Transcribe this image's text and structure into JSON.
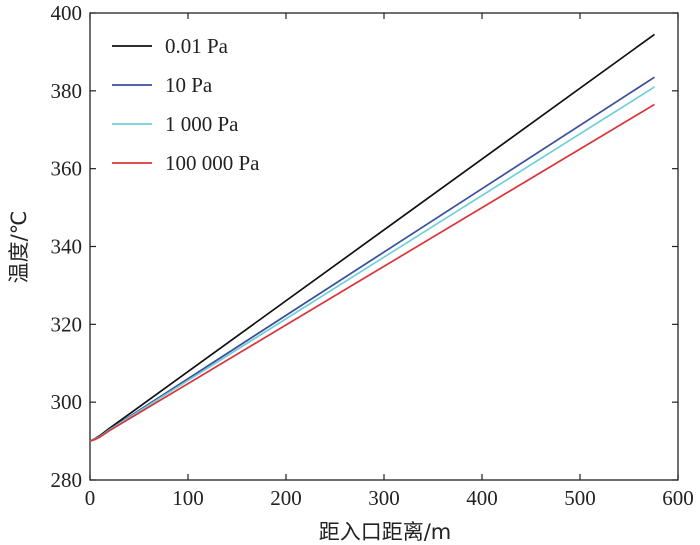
{
  "chart_data": {
    "type": "line",
    "xlabel": "距入口距离/m",
    "ylabel": "温度/℃",
    "xlim": [
      0,
      600
    ],
    "ylim": [
      280,
      400
    ],
    "xticks": [
      "0",
      "100",
      "200",
      "300",
      "400",
      "500",
      "600"
    ],
    "yticks": [
      "280",
      "300",
      "320",
      "340",
      "360",
      "380",
      "400"
    ],
    "xtick_values": [
      0,
      100,
      200,
      300,
      400,
      500,
      600
    ],
    "ytick_values": [
      280,
      300,
      320,
      340,
      360,
      380,
      400
    ],
    "grid": false,
    "legend_position": "top-left",
    "series": [
      {
        "name": "0.01 Pa",
        "color": "#111111",
        "x": [
          0,
          5,
          10,
          20,
          576
        ],
        "y": [
          290,
          290.6,
          291.4,
          293.3,
          394.5
        ]
      },
      {
        "name": "10 Pa",
        "color": "#3a4f9a",
        "x": [
          0,
          5,
          10,
          20,
          576
        ],
        "y": [
          290,
          290.5,
          291.2,
          293.0,
          383.5
        ]
      },
      {
        "name": "1 000 Pa",
        "color": "#6fd0d6",
        "x": [
          0,
          5,
          10,
          20,
          576
        ],
        "y": [
          290,
          290.5,
          291.1,
          292.9,
          381.0
        ]
      },
      {
        "name": "100 000 Pa",
        "color": "#d9343a",
        "x": [
          0,
          5,
          10,
          20,
          576
        ],
        "y": [
          290,
          290.4,
          291.0,
          292.7,
          376.5
        ]
      }
    ]
  }
}
